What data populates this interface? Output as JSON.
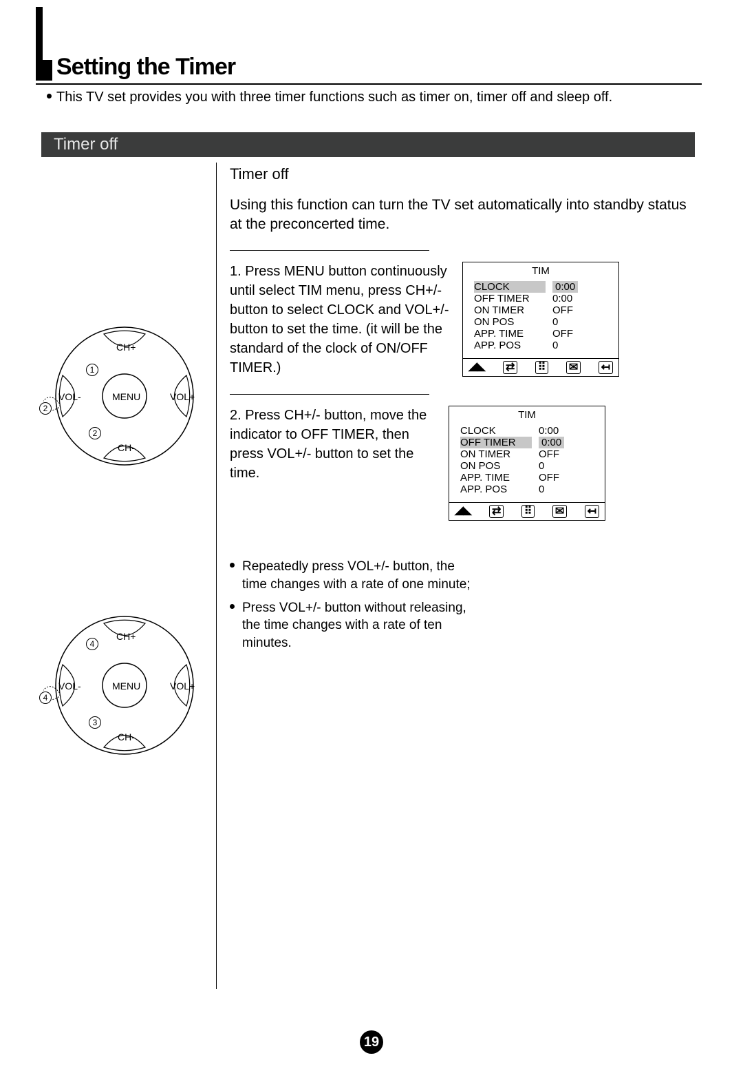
{
  "page": {
    "title": "Setting the Timer",
    "intro": "This TV set provides you with three timer functions such as timer on, timer off and sleep off.",
    "section_bar": "Timer off",
    "page_number": "19"
  },
  "right": {
    "subtitle": "Timer off",
    "description": "Using this function can turn the TV set automatically into standby status at the preconcerted time.",
    "step1": "1. Press MENU button continuously until select TIM menu, press CH+/- button to select CLOCK and VOL+/- button to set the time. (it will be the standard of the clock of ON/OFF TIMER.)",
    "step2": "2. Press CH+/- button, move the indicator to OFF TIMER, then press VOL+/- button to set the time.",
    "bullet1": "Repeatedly press VOL+/- button, the time changes with a rate of one minute;",
    "bullet2": "Press VOL+/- button without releasing, the time changes with a rate of ten minutes."
  },
  "menu1": {
    "title": "TIM",
    "rows": [
      {
        "k": "CLOCK",
        "v": "0:00",
        "hl": true
      },
      {
        "k": "OFF TIMER",
        "v": "0:00",
        "hl": false
      },
      {
        "k": "ON TIMER",
        "v": "OFF",
        "hl": false
      },
      {
        "k": "ON POS",
        "v": "0",
        "hl": false
      },
      {
        "k": "APP. TIME",
        "v": "OFF",
        "hl": false
      },
      {
        "k": "APP. POS",
        "v": "0",
        "hl": false
      }
    ]
  },
  "menu2": {
    "title": "TIM",
    "rows": [
      {
        "k": "CLOCK",
        "v": "0:00",
        "hl": false
      },
      {
        "k": "OFF TIMER",
        "v": "0:00",
        "hl": true
      },
      {
        "k": "ON TIMER",
        "v": "OFF",
        "hl": false
      },
      {
        "k": "ON POS",
        "v": "0",
        "hl": false
      },
      {
        "k": "APP. TIME",
        "v": "OFF",
        "hl": false
      },
      {
        "k": "APP. POS",
        "v": "0",
        "hl": false
      }
    ]
  },
  "remote": {
    "ch_up": "CH+",
    "ch_down": "CH-",
    "vol_up": "VOL+",
    "vol_down": "VOL-",
    "menu": "MENU"
  },
  "remote1_callouts": {
    "a": "1",
    "b": "2",
    "c": "2"
  },
  "remote2_callouts": {
    "a": "4",
    "b": "4",
    "c": "3"
  },
  "icons": [
    "◢◣",
    "⇄",
    "⠿",
    "✉",
    "↤"
  ]
}
